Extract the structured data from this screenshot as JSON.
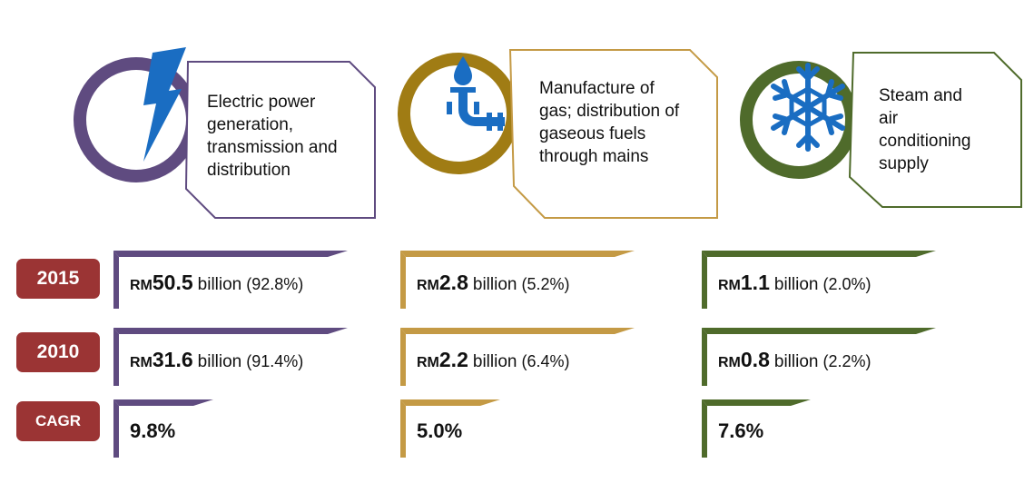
{
  "row_labels": [
    "2015",
    "2010",
    "CAGR"
  ],
  "sectors": [
    {
      "title": "Electric power generation, transmission and distribution",
      "cells": [
        {
          "currency": "RM",
          "amount": "50.5",
          "unit": "billion",
          "share": "(92.8%)"
        },
        {
          "currency": "RM",
          "amount": "31.6",
          "unit": "billion",
          "share": "(91.4%)"
        },
        {
          "cagr": "9.8%"
        }
      ]
    },
    {
      "title": "Manufacture of gas; distribution of gaseous fuels through mains",
      "cells": [
        {
          "currency": "RM",
          "amount": "2.8",
          "unit": "billion",
          "share": "(5.2%)"
        },
        {
          "currency": "RM",
          "amount": "2.2",
          "unit": "billion",
          "share": "(6.4%)"
        },
        {
          "cagr": "5.0%"
        }
      ]
    },
    {
      "title": "Steam and air conditioning supply",
      "cells": [
        {
          "currency": "RM",
          "amount": "1.1",
          "unit": "billion",
          "share": "(2.0%)"
        },
        {
          "currency": "RM",
          "amount": "0.8",
          "unit": "billion",
          "share": "(2.2%)"
        },
        {
          "cagr": "7.6%"
        }
      ]
    }
  ]
}
